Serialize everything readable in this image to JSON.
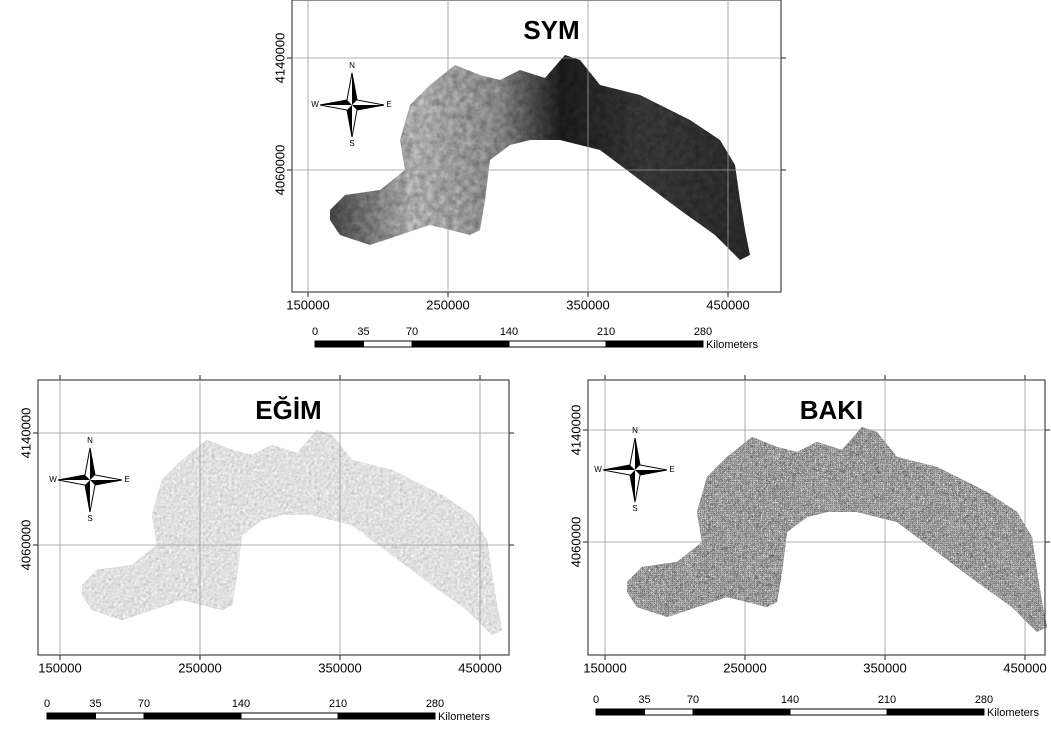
{
  "panels": [
    {
      "title": "SYM",
      "x_ticks": [
        150000,
        250000,
        350000,
        450000
      ],
      "y_ticks": [
        4140000,
        4060000
      ],
      "compass": {
        "n": "N",
        "s": "S",
        "e": "E",
        "w": "W"
      },
      "scale_bar": {
        "ticks": [
          0,
          35,
          70,
          140,
          210,
          280
        ],
        "unit": "Kilometers"
      }
    },
    {
      "title": "EĞİM",
      "x_ticks": [
        150000,
        250000,
        350000,
        450000
      ],
      "y_ticks": [
        4140000,
        4060000
      ],
      "compass": {
        "n": "N",
        "s": "S",
        "e": "E",
        "w": "W"
      },
      "scale_bar": {
        "ticks": [
          0,
          35,
          70,
          140,
          210,
          280
        ],
        "unit": "Kilometers"
      }
    },
    {
      "title": "BAKI",
      "x_ticks": [
        150000,
        250000,
        350000,
        450000
      ],
      "y_ticks": [
        4140000,
        4060000
      ],
      "compass": {
        "n": "N",
        "s": "S",
        "e": "E",
        "w": "W"
      },
      "scale_bar": {
        "ticks": [
          0,
          35,
          70,
          140,
          210,
          280
        ],
        "unit": "Kilometers"
      }
    }
  ]
}
